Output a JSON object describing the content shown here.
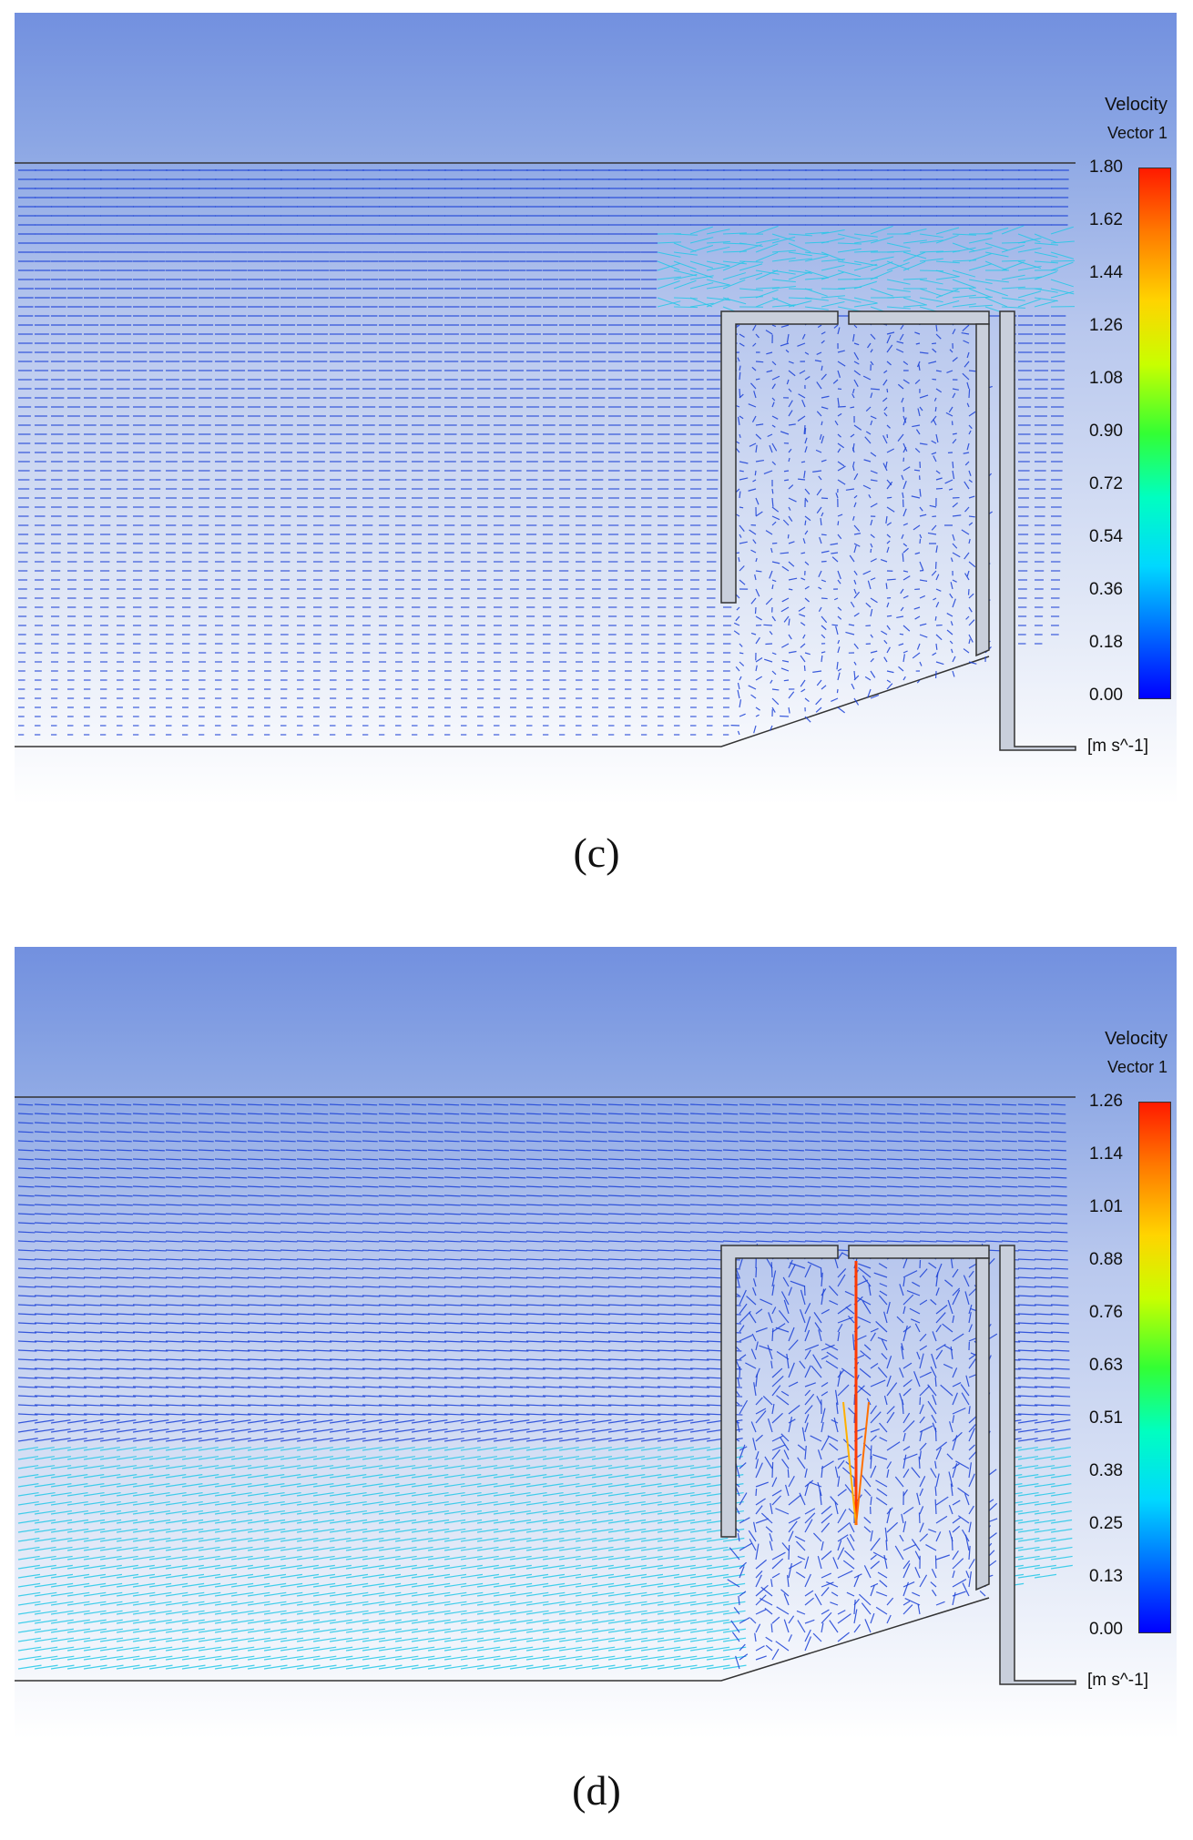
{
  "panels": [
    {
      "caption": "(c)",
      "legend": {
        "title": "Velocity",
        "subtitle": "Vector 1",
        "ticks": [
          "1.80",
          "1.62",
          "1.44",
          "1.26",
          "1.08",
          "0.90",
          "0.72",
          "0.54",
          "0.36",
          "0.18",
          "0.00"
        ],
        "unit": "[m s^-1]"
      }
    },
    {
      "caption": "(d)",
      "legend": {
        "title": "Velocity",
        "subtitle": "Vector 1",
        "ticks": [
          "1.26",
          "1.14",
          "1.01",
          "0.88",
          "0.76",
          "0.63",
          "0.51",
          "0.38",
          "0.25",
          "0.13",
          "0.00"
        ],
        "unit": "[m s^-1]"
      }
    }
  ],
  "colors": {
    "sky_top": "#7290df",
    "vector_slow": "#1a3fd6",
    "vector_mid": "#22c8e8",
    "vector_fast": "#ff3a00",
    "structure_fill": "#c9cfdb",
    "structure_stroke": "#333333"
  }
}
